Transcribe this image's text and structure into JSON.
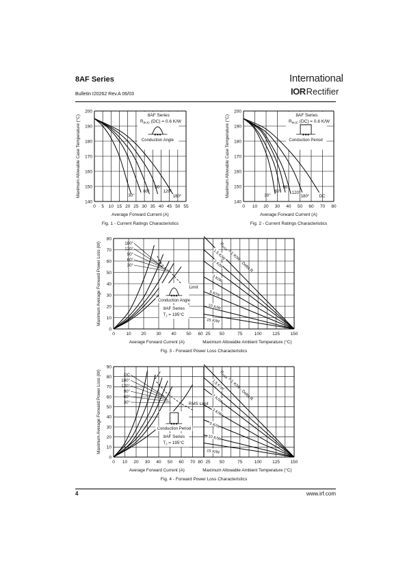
{
  "header": {
    "series_title": "8AF Series",
    "bulletin": "Bulletin  I20262  Rev.A  06/03",
    "brand_line1": "International",
    "brand_logo": "IOR",
    "brand_line2": "Rectifier"
  },
  "footer": {
    "page_number": "4",
    "website": "www.irf.com"
  },
  "chart_data": [
    {
      "type": "line",
      "caption": "Fig. 1 - Current Ratings Characteristics",
      "xlabel": "Average Forward Current (A)",
      "ylabel": "Maximum Allowable Case Temperature (°C)",
      "xlim": [
        0,
        55
      ],
      "ylim": [
        140,
        200
      ],
      "xticks": [
        "0",
        "5",
        "10",
        "15",
        "20",
        "25",
        "30",
        "35",
        "40",
        "45",
        "50",
        "55"
      ],
      "yticks": [
        "140",
        "150",
        "160",
        "170",
        "180",
        "190",
        "200"
      ],
      "grid": true,
      "annotations": [
        "8AF Series",
        "R",
        "thJC",
        "(DC) = 0.6 K/W",
        "Conduction Angle"
      ],
      "series": [
        {
          "name": "30°",
          "x": [
            0,
            5,
            10,
            15,
            20,
            22
          ],
          "y": [
            195,
            190,
            182,
            170,
            152,
            145
          ]
        },
        {
          "name": "60°",
          "x": [
            0,
            8,
            15,
            20,
            25,
            28
          ],
          "y": [
            195,
            189,
            180,
            170,
            155,
            146
          ]
        },
        {
          "name": "90°",
          "x": [
            0,
            10,
            20,
            25,
            30,
            33
          ],
          "y": [
            195,
            188,
            176,
            167,
            154,
            145
          ]
        },
        {
          "name": "120°",
          "x": [
            0,
            10,
            20,
            30,
            35,
            38
          ],
          "y": [
            195,
            189,
            180,
            165,
            155,
            145
          ]
        },
        {
          "name": "180°",
          "x": [
            0,
            15,
            25,
            35,
            42,
            47
          ],
          "y": [
            195,
            187,
            178,
            165,
            154,
            145
          ]
        }
      ]
    },
    {
      "type": "line",
      "caption": "Fig. 2 - Current Ratings Characteristics",
      "xlabel": "Average Forward Current (A)",
      "ylabel": "Maximum Allowable Case Temperature (°C)",
      "xlim": [
        0,
        80
      ],
      "ylim": [
        140,
        200
      ],
      "xticks": [
        "0",
        "10",
        "20",
        "30",
        "40",
        "50",
        "60",
        "70",
        "80"
      ],
      "yticks": [
        "140",
        "150",
        "160",
        "170",
        "180",
        "190",
        "200"
      ],
      "grid": true,
      "annotations": [
        "8AF Series",
        "R",
        "thJC",
        "(DC) = 0.6 K/W",
        "Conduction Period"
      ],
      "series": [
        {
          "name": "30°",
          "x": [
            0,
            10,
            20,
            25,
            28
          ],
          "y": [
            195,
            188,
            172,
            158,
            145
          ]
        },
        {
          "name": "60°",
          "x": [
            0,
            10,
            20,
            28,
            33
          ],
          "y": [
            195,
            189,
            177,
            163,
            146
          ]
        },
        {
          "name": "90°",
          "x": [
            0,
            15,
            25,
            32,
            37
          ],
          "y": [
            195,
            187,
            174,
            161,
            146
          ]
        },
        {
          "name": "120°",
          "x": [
            0,
            15,
            25,
            35,
            42
          ],
          "y": [
            195,
            188,
            177,
            162,
            145
          ]
        },
        {
          "name": "180°",
          "x": [
            0,
            20,
            35,
            45,
            52
          ],
          "y": [
            195,
            186,
            172,
            159,
            146
          ]
        },
        {
          "name": "DC",
          "x": [
            0,
            20,
            40,
            55,
            67
          ],
          "y": [
            195,
            188,
            174,
            160,
            146
          ]
        }
      ]
    },
    {
      "type": "line",
      "caption": "Fig. 3 - Forward Power Loss Characteristics",
      "xlabel": "Average Forward Current (A)",
      "xlabel2": "Maximum Allowable Ambient Temperature (°C)",
      "ylabel": "Maximum Average Forward Power Loss (W)",
      "xlim": [
        0,
        60
      ],
      "ylim": [
        0,
        80
      ],
      "xticks": [
        "0",
        "10",
        "20",
        "30",
        "40",
        "50",
        "60"
      ],
      "x2lim": [
        25,
        150
      ],
      "x2ticks": [
        "25",
        "50",
        "75",
        "100",
        "125",
        "150"
      ],
      "yticks": [
        "0",
        "10",
        "20",
        "30",
        "40",
        "50",
        "60",
        "70",
        "80"
      ],
      "grid": true,
      "legend_labels": [
        "180°",
        "120°",
        "90°",
        "60°",
        "30°"
      ],
      "annotations": [
        "RMS Limit",
        "Conduction Angle",
        "8AF Series",
        "T",
        "J",
        "= 195°C",
        "R",
        "thSA",
        "= 1 K/W - Delta R"
      ],
      "series": [
        {
          "name": "180°",
          "x": [
            0,
            10,
            20,
            30,
            40,
            45
          ],
          "y": [
            0,
            7,
            17,
            30,
            46,
            55
          ]
        },
        {
          "name": "120°",
          "x": [
            0,
            10,
            20,
            30,
            40
          ],
          "y": [
            0,
            8,
            20,
            36,
            58
          ]
        },
        {
          "name": "90°",
          "x": [
            0,
            10,
            20,
            30,
            37
          ],
          "y": [
            0,
            9,
            23,
            42,
            60
          ]
        },
        {
          "name": "60°",
          "x": [
            0,
            10,
            20,
            28,
            33
          ],
          "y": [
            0,
            11,
            28,
            50,
            66
          ]
        },
        {
          "name": "30°",
          "x": [
            0,
            10,
            17,
            23,
            27
          ],
          "y": [
            0,
            15,
            34,
            55,
            74
          ]
        }
      ],
      "rms_limit": {
        "x": [
          30,
          33,
          36,
          38,
          40,
          45
        ],
        "y": [
          62,
          56,
          52,
          50,
          47,
          40
        ]
      },
      "thermal_lines": [
        {
          "name": "1.5 K/W",
          "label": "1.5 K/W",
          "y_at_ambient_25": 70
        },
        {
          "name": "2 K/W",
          "label": "2 K/W",
          "y_at_ambient_25": 60
        },
        {
          "name": "3 K/W",
          "label": "3 K/W",
          "y_at_ambient_25": 46
        },
        {
          "name": "5 K/W",
          "label": "5 K/W",
          "y_at_ambient_25": 33
        },
        {
          "name": "10 K/W",
          "label": "10 K/W",
          "y_at_ambient_25": 20
        },
        {
          "name": "15 K/W",
          "label": "15 K/W",
          "y_at_ambient_25": 13
        }
      ],
      "thermal_top": {
        "y_at_ambient_25": 96
      }
    },
    {
      "type": "line",
      "caption": "Fig. 4 - Forward Power Loss Characteristics",
      "xlabel": "Average Forward Current (A)",
      "xlabel2": "Maximum Allowable Ambient Temperature (°C)",
      "ylabel": "Maximum Average Forward Power Loss (W)",
      "xlim": [
        0,
        80
      ],
      "ylim": [
        0,
        90
      ],
      "xticks": [
        "0",
        "10",
        "20",
        "30",
        "40",
        "50",
        "60",
        "70",
        "80"
      ],
      "x2lim": [
        25,
        150
      ],
      "x2ticks": [
        "25",
        "50",
        "75",
        "100",
        "125",
        "150"
      ],
      "yticks": [
        "0",
        "10",
        "20",
        "30",
        "40",
        "50",
        "60",
        "70",
        "80",
        "90"
      ],
      "grid": true,
      "legend_labels": [
        "DC",
        "180°",
        "120°",
        "90°",
        "60°",
        "30°"
      ],
      "annotations": [
        "RMS Limit",
        "Conduction Period",
        "8AF Series",
        "T",
        "J",
        "= 195°C",
        "R",
        "thSA",
        "= 1 K/W - Delta R"
      ],
      "series": [
        {
          "name": "DC",
          "x": [
            0,
            20,
            40,
            60,
            70
          ],
          "y": [
            0,
            13,
            30,
            55,
            72
          ]
        },
        {
          "name": "180°",
          "x": [
            0,
            20,
            35,
            45,
            52
          ],
          "y": [
            0,
            15,
            35,
            55,
            70
          ]
        },
        {
          "name": "120°",
          "x": [
            0,
            20,
            35,
            43,
            48
          ],
          "y": [
            0,
            18,
            42,
            62,
            76
          ]
        },
        {
          "name": "90°",
          "x": [
            0,
            15,
            30,
            38,
            43
          ],
          "y": [
            0,
            14,
            40,
            62,
            79
          ]
        },
        {
          "name": "60°",
          "x": [
            0,
            15,
            25,
            33,
            37
          ],
          "y": [
            0,
            18,
            40,
            64,
            82
          ]
        },
        {
          "name": "30°",
          "x": [
            0,
            10,
            20,
            27,
            30
          ],
          "y": [
            0,
            14,
            40,
            70,
            86
          ]
        }
      ],
      "rms_limit": {
        "x": [
          38,
          42,
          46,
          50,
          55,
          60,
          65,
          70
        ],
        "y": [
          75,
          70,
          65,
          61,
          57,
          53,
          50,
          47
        ]
      },
      "thermal_lines": [
        {
          "name": "1.5 K/W",
          "label": "1.5 K/W",
          "y_at_ambient_25": 79
        },
        {
          "name": "2 K/W",
          "label": "2 K/W",
          "y_at_ambient_25": 68
        },
        {
          "name": "3 K/W",
          "label": "3 K/W",
          "y_at_ambient_25": 52
        },
        {
          "name": "5 K/W",
          "label": "5 K/W",
          "y_at_ambient_25": 37
        },
        {
          "name": "10 K/W",
          "label": "10 K/W",
          "y_at_ambient_25": 22
        },
        {
          "name": "15 K/W",
          "label": "15 K/W",
          "y_at_ambient_25": 14
        }
      ],
      "thermal_top": {
        "y_at_ambient_25": 104
      }
    }
  ]
}
